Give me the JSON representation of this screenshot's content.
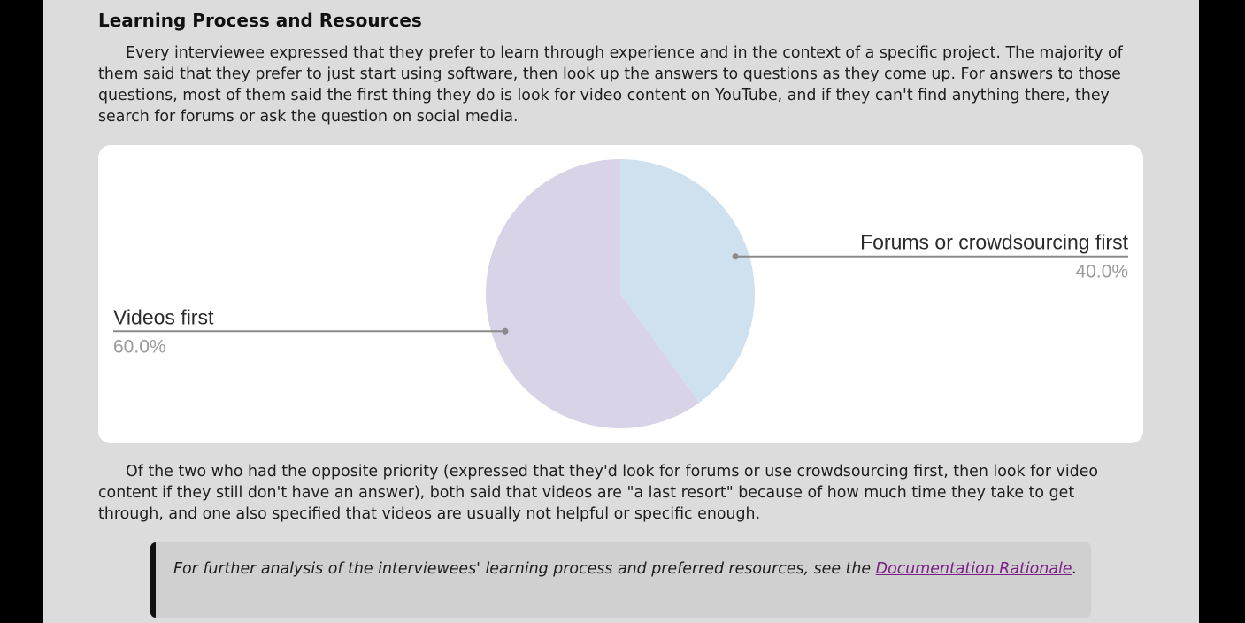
{
  "section": {
    "heading": "Learning Process and Resources",
    "paragraph1": "Every interviewee expressed that they prefer to learn through experience and in the context of a specific project. The majority of them said that they prefer to just start using software, then look up the answers to questions as they come up. For answers to those questions, most of them said the first thing they do is look for video content on YouTube, and if they can't find anything there, they search for forums or ask the question on social media.",
    "paragraph2": "Of the two who had the opposite priority (expressed that they'd look for forums or use crowdsourcing first, then look for video content if they still don't have an answer), both said that videos are \"a last resort\" because of how much time they take to get through, and one also specified that videos are usually not helpful or specific enough."
  },
  "callout": {
    "text_before": "For further analysis of the interviewees' learning process and preferred resources, see the ",
    "link_text": "Documentation Rationale",
    "text_after": "."
  },
  "chart_data": {
    "type": "pie",
    "title": "",
    "slices": [
      {
        "label": "Forums or crowdsourcing first",
        "value": 40.0,
        "percent_label": "40.0%",
        "color": "#cfe0ef"
      },
      {
        "label": "Videos first",
        "value": 60.0,
        "percent_label": "60.0%",
        "color": "#d8d3e6"
      }
    ]
  }
}
